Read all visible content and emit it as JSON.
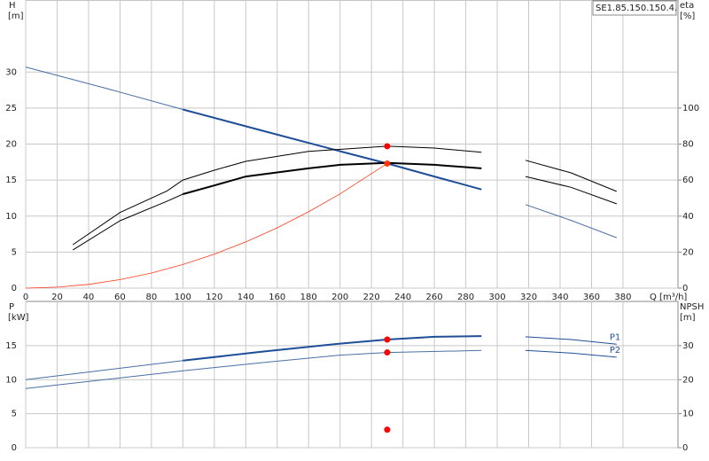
{
  "chart_data": [
    {
      "type": "line",
      "title": "SE1.85.150.150.4.",
      "ylabel": "H",
      "yunit": "[m]",
      "y2label": "eta",
      "y2unit": "[%]",
      "xlabel": "Q [m³/h]",
      "xlim": [
        0,
        415
      ],
      "xticks": [
        0,
        20,
        40,
        60,
        80,
        100,
        120,
        140,
        160,
        180,
        200,
        220,
        240,
        260,
        280,
        300,
        320,
        340,
        360,
        380
      ],
      "xtick_labels": true,
      "ylim": [
        0,
        40
      ],
      "yticks": [
        0,
        5,
        10,
        15,
        20,
        25,
        30
      ],
      "y2lim": [
        0,
        160
      ],
      "y2ticks": [
        0,
        20,
        40,
        60,
        80,
        100
      ],
      "grid": true,
      "series": [
        {
          "color": "#ff3a1a",
          "width": 0.8,
          "x": [
            0,
            20,
            40,
            60,
            80,
            100,
            120,
            140,
            160,
            180,
            200,
            230
          ],
          "values": [
            0,
            0.13,
            0.52,
            1.18,
            2.09,
            3.27,
            4.71,
            6.41,
            8.37,
            10.6,
            13.08,
            17.3
          ]
        },
        {
          "color": "#4a6fa5",
          "width": 1,
          "x": [
            0,
            50,
            100
          ],
          "values": [
            30.7,
            27.8,
            24.8
          ]
        },
        {
          "color": "#1f4e99",
          "width": 2,
          "x": [
            100,
            150,
            200,
            230,
            260,
            290
          ],
          "values": [
            24.8,
            21.9,
            19.0,
            17.3,
            15.5,
            13.7
          ]
        },
        {
          "color": "#4a6fa5",
          "width": 1,
          "x": [
            318,
            347,
            376
          ],
          "values": [
            11.6,
            9.4,
            7.0
          ]
        },
        {
          "color": "#000000",
          "width": 1,
          "axis": "y2",
          "x": [
            30,
            60,
            90,
            100,
            120,
            140,
            180,
            230,
            260,
            290
          ],
          "values": [
            24.1,
            42,
            54,
            60,
            65.5,
            70.4,
            75.9,
            78.8,
            77.8,
            75.4
          ]
        },
        {
          "color": "#000000",
          "width": 1,
          "axis": "y2",
          "x": [
            318,
            347,
            376
          ],
          "values": [
            71,
            64,
            53.7
          ]
        },
        {
          "color": "#000000",
          "width": 1,
          "axis": "y2",
          "x": [
            30,
            60,
            90,
            100
          ],
          "values": [
            21.2,
            37.4,
            48.3,
            52.2
          ]
        },
        {
          "color": "#000000",
          "width": 2,
          "axis": "y2",
          "x": [
            100,
            120,
            140,
            180,
            200,
            230,
            260,
            290
          ],
          "values": [
            52.2,
            57,
            62,
            66.5,
            68.5,
            69.5,
            68.5,
            66.5
          ]
        },
        {
          "color": "#000000",
          "width": 1,
          "axis": "y2",
          "x": [
            318,
            347,
            376
          ],
          "values": [
            62,
            56,
            46.8
          ]
        }
      ],
      "points": [
        {
          "x": 230,
          "value": 78.8,
          "axis": "y2",
          "color": "#ff0000"
        },
        {
          "x": 230,
          "value": 17.3,
          "color": "#ff3300"
        }
      ]
    },
    {
      "type": "line",
      "ylabel": "P",
      "yunit": "[kW]",
      "y2label": "NPSH",
      "y2unit": "[m]",
      "xlim": [
        0,
        415
      ],
      "xticks": [
        0,
        20,
        40,
        60,
        80,
        100,
        120,
        140,
        160,
        180,
        200,
        220,
        240,
        260,
        280,
        300,
        320,
        340,
        360,
        380
      ],
      "xtick_labels": false,
      "ylim": [
        0,
        21.5
      ],
      "yticks": [
        0,
        5,
        10,
        15
      ],
      "y2lim": [
        0,
        43
      ],
      "y2ticks": [
        0,
        10,
        20,
        30
      ],
      "grid": true,
      "series": [
        {
          "color": "#4a6fa5",
          "width": 1,
          "x": [
            0,
            50,
            100
          ],
          "values": [
            10.0,
            11.4,
            12.8
          ]
        },
        {
          "color": "#1f4e99",
          "width": 2,
          "x": [
            100,
            150,
            200,
            230,
            260,
            290
          ],
          "values": [
            12.8,
            14.1,
            15.3,
            15.9,
            16.3,
            16.4
          ]
        },
        {
          "name": "P1",
          "color": "#1f4e99",
          "width": 1,
          "x": [
            318,
            347,
            376
          ],
          "values": [
            16.3,
            15.9,
            15.2
          ]
        },
        {
          "color": "#4a6fa5",
          "width": 1,
          "x": [
            0,
            50,
            100,
            150,
            200,
            230,
            290
          ],
          "values": [
            8.7,
            10.0,
            11.3,
            12.5,
            13.6,
            14.0,
            14.3
          ]
        },
        {
          "name": "P2",
          "color": "#1f4e99",
          "width": 1,
          "x": [
            318,
            347,
            376
          ],
          "values": [
            14.3,
            13.9,
            13.3
          ]
        }
      ],
      "points": [
        {
          "x": 230,
          "value": 15.9,
          "color": "#ff0000"
        },
        {
          "x": 230,
          "value": 14.0,
          "color": "#ff0000"
        },
        {
          "x": 230,
          "value": 5.3,
          "axis": "y2",
          "color": "#ff0000"
        }
      ]
    }
  ]
}
